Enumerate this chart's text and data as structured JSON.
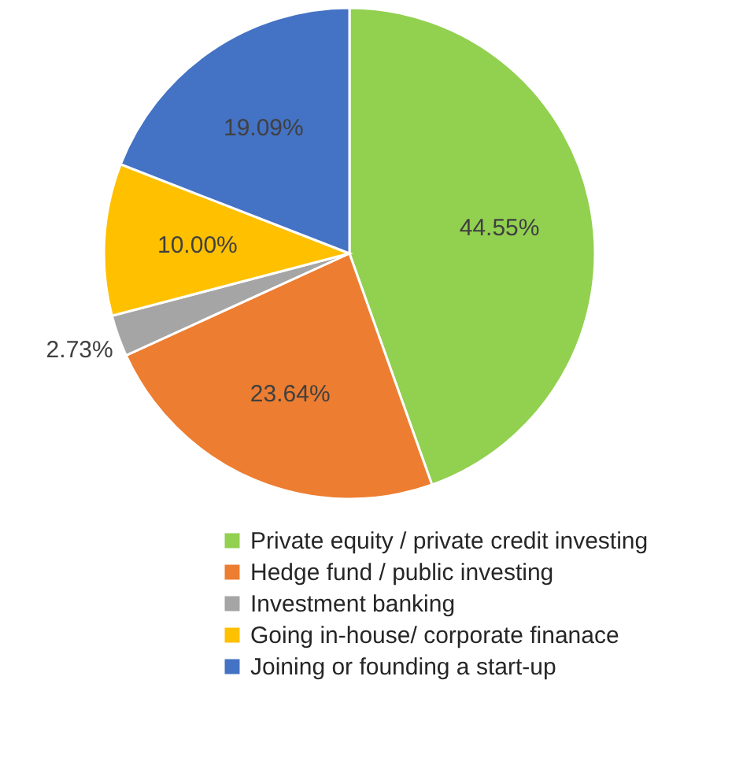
{
  "chart_data": {
    "type": "pie",
    "categories": [
      "Private equity / private credit investing",
      "Hedge fund / public investing",
      "Investment banking",
      "Going in-house/ corporate finanace",
      "Joining or founding a start-up"
    ],
    "values": [
      44.55,
      23.64,
      2.73,
      10.0,
      19.09
    ],
    "colors": [
      "#92d050",
      "#ed7d31",
      "#a5a5a5",
      "#ffc000",
      "#4472c4"
    ],
    "value_labels": [
      "44.55%",
      "23.64%",
      "2.73%",
      "10.00%",
      "19.09%"
    ],
    "legend": "bottom"
  }
}
